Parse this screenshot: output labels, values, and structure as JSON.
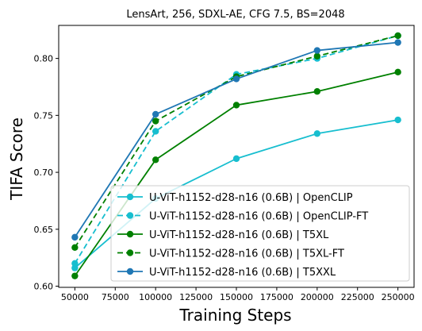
{
  "chart_data": {
    "type": "line",
    "title": "LensArt, 256, SDXL-AE, CFG 7.5, BS=2048",
    "xlabel": "Training Steps",
    "ylabel": "TIFA Score",
    "xlim": [
      40000,
      260000
    ],
    "ylim": [
      0.599,
      0.829
    ],
    "xticks": [
      50000,
      75000,
      100000,
      125000,
      150000,
      175000,
      200000,
      225000,
      250000
    ],
    "yticks": [
      0.6,
      0.65,
      0.7,
      0.75,
      0.8
    ],
    "ytick_labels": [
      "0.60",
      "0.65",
      "0.70",
      "0.75",
      "0.80"
    ],
    "legend_position": "lower-right",
    "grid": false,
    "x": [
      50000,
      100000,
      150000,
      200000,
      250000
    ],
    "series": [
      {
        "name": "U-ViT-h1152-d28-n16 (0.6B) | OpenCLIP",
        "color": "#17becf",
        "dashed": false,
        "values": [
          0.616,
          0.677,
          0.712,
          0.734,
          0.746
        ]
      },
      {
        "name": "U-ViT-h1152-d28-n16 (0.6B) | OpenCLIP-FT",
        "color": "#17becf",
        "dashed": true,
        "values": [
          0.62,
          0.736,
          0.786,
          0.8,
          0.82
        ]
      },
      {
        "name": "U-ViT-h1152-d28-n16 (0.6B) | T5XL",
        "color": "#008000",
        "dashed": false,
        "values": [
          0.609,
          0.711,
          0.759,
          0.771,
          0.788
        ]
      },
      {
        "name": "U-ViT-h1152-d28-n16 (0.6B) | T5XL-FT",
        "color": "#008000",
        "dashed": true,
        "values": [
          0.634,
          0.745,
          0.784,
          0.802,
          0.82
        ]
      },
      {
        "name": "U-ViT-h1152-d28-n16 (0.6B) | T5XXL",
        "color": "#1f77b4",
        "dashed": false,
        "values": [
          0.643,
          0.751,
          0.782,
          0.807,
          0.814
        ]
      }
    ]
  }
}
